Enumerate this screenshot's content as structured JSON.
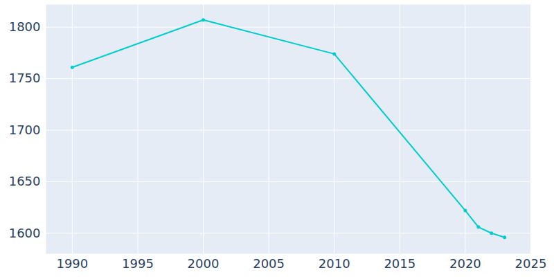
{
  "chart_data": {
    "type": "line",
    "x": [
      1990,
      2000,
      2010,
      2020,
      2021,
      2022,
      2023
    ],
    "values": [
      1761,
      1807,
      1774,
      1622,
      1606,
      1600,
      1596
    ],
    "color": "#00cccc",
    "marker": "circle",
    "xlim": [
      1988,
      2025
    ],
    "xticks": [
      1990,
      1995,
      2000,
      2005,
      2010,
      2015,
      2020,
      2025
    ],
    "ylim": [
      1580,
      1822
    ],
    "yticks": [
      1600,
      1650,
      1700,
      1750,
      1800
    ],
    "grid": true
  }
}
